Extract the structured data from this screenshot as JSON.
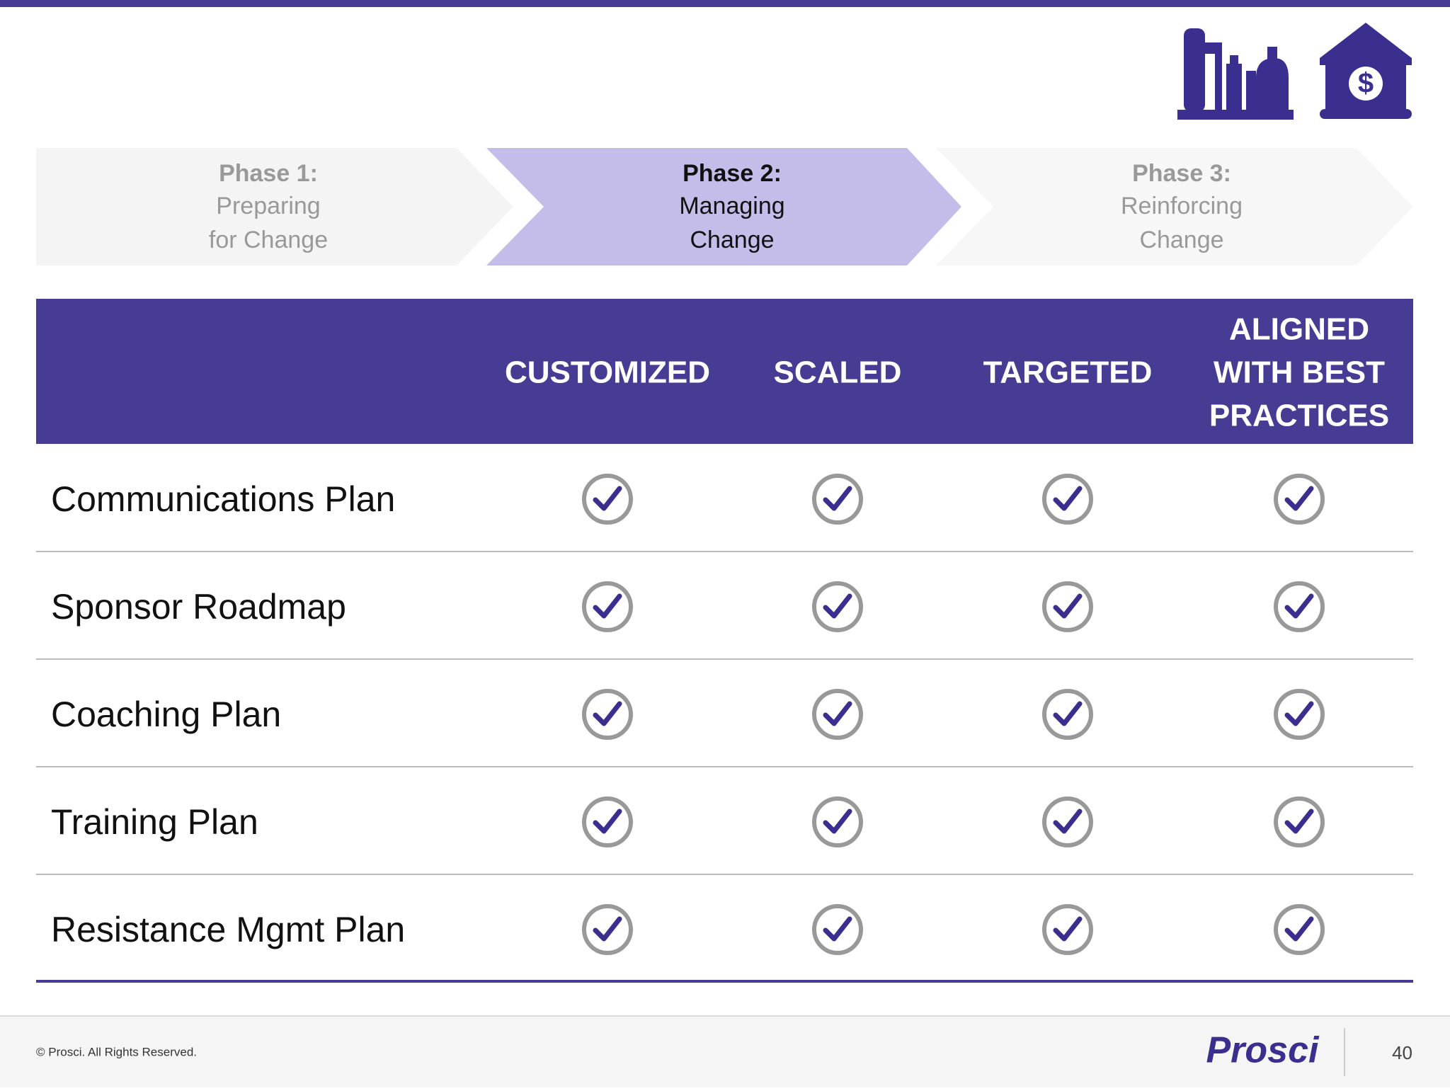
{
  "phases": [
    {
      "title": "Phase 1:",
      "lines": [
        "Preparing",
        "for Change"
      ]
    },
    {
      "title": "Phase 2:",
      "lines": [
        "Managing",
        "Change"
      ]
    },
    {
      "title": "Phase 3:",
      "lines": [
        "Reinforcing",
        "Change"
      ]
    }
  ],
  "table": {
    "columns": [
      {
        "lines": [
          "CUSTOMIZED"
        ]
      },
      {
        "lines": [
          "SCALED"
        ]
      },
      {
        "lines": [
          "TARGETED"
        ]
      },
      {
        "lines": [
          "ALIGNED",
          "WITH BEST",
          "PRACTICES"
        ]
      }
    ],
    "rows": [
      "Communications Plan",
      "Sponsor Roadmap",
      "Coaching Plan",
      "Training Plan",
      "Resistance Mgmt Plan"
    ]
  },
  "footer": {
    "copyright": "© Prosci. All Rights Reserved.",
    "logo": "Prosci",
    "page": "40"
  }
}
